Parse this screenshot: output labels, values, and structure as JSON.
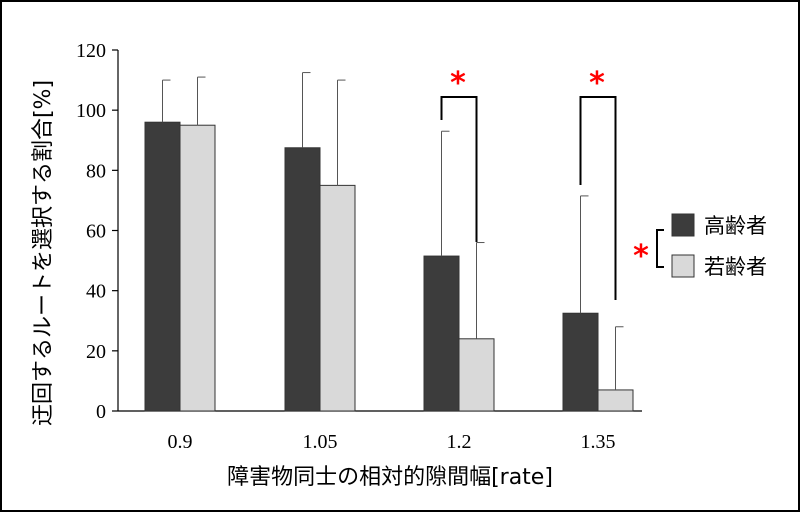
{
  "chart_data": {
    "type": "bar",
    "xlabel": "障害物同士の相対的隙間幅[rate]",
    "ylabel": "迂回するルートを選択する割合[%]",
    "ylim": [
      0,
      120
    ],
    "yticks": [
      "0",
      "20",
      "40",
      "60",
      "80",
      "100",
      "120"
    ],
    "categories": [
      "0.9",
      "1.05",
      "1.2",
      "1.35"
    ],
    "series": [
      {
        "name": "高齢者",
        "color": "#3c3c3c",
        "values": [
          96,
          87.5,
          51.5,
          32.5
        ],
        "error": [
          14,
          25,
          41.5,
          39
        ]
      },
      {
        "name": "若齢者",
        "color": "#d9d9d9",
        "values": [
          95,
          75,
          24,
          7
        ],
        "error": [
          16,
          35,
          32,
          21
        ]
      }
    ],
    "significance": [
      {
        "category": "1.2",
        "mark": "*"
      },
      {
        "category": "1.35",
        "mark": "*"
      }
    ],
    "legend_significance_mark": "*",
    "legend_position": "right",
    "grid": false,
    "marker_color": "#ff0000"
  }
}
